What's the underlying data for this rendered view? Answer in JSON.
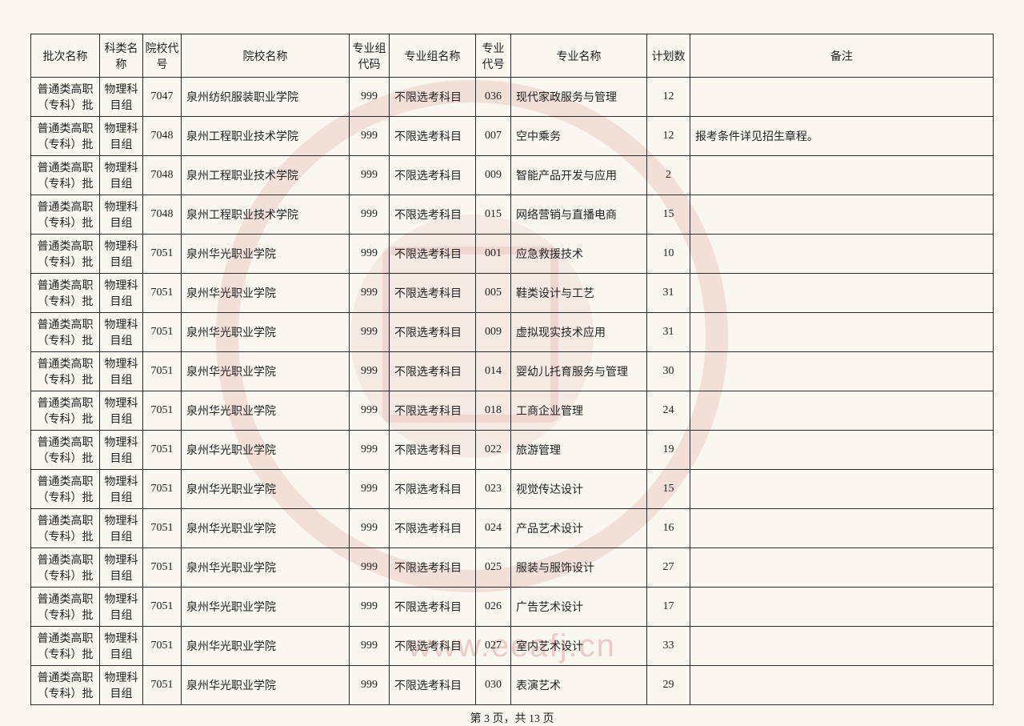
{
  "columns": [
    "批次名称",
    "科类名称",
    "院校代号",
    "院校名称",
    "专业组代码",
    "专业组名称",
    "专业代号",
    "专业名称",
    "计划数",
    "备注"
  ],
  "rows": [
    {
      "batch": "普通类高职（专科）批",
      "subject": "物理科目组",
      "schoolCode": "7047",
      "schoolName": "泉州纺织服装职业学院",
      "groupCode": "999",
      "groupName": "不限选考科目",
      "majorCode": "036",
      "majorName": "现代家政服务与管理",
      "plan": "12",
      "remark": ""
    },
    {
      "batch": "普通类高职（专科）批",
      "subject": "物理科目组",
      "schoolCode": "7048",
      "schoolName": "泉州工程职业技术学院",
      "groupCode": "999",
      "groupName": "不限选考科目",
      "majorCode": "007",
      "majorName": "空中乘务",
      "plan": "12",
      "remark": "报考条件详见招生章程。"
    },
    {
      "batch": "普通类高职（专科）批",
      "subject": "物理科目组",
      "schoolCode": "7048",
      "schoolName": "泉州工程职业技术学院",
      "groupCode": "999",
      "groupName": "不限选考科目",
      "majorCode": "009",
      "majorName": "智能产品开发与应用",
      "plan": "2",
      "remark": ""
    },
    {
      "batch": "普通类高职（专科）批",
      "subject": "物理科目组",
      "schoolCode": "7048",
      "schoolName": "泉州工程职业技术学院",
      "groupCode": "999",
      "groupName": "不限选考科目",
      "majorCode": "015",
      "majorName": "网络营销与直播电商",
      "plan": "15",
      "remark": ""
    },
    {
      "batch": "普通类高职（专科）批",
      "subject": "物理科目组",
      "schoolCode": "7051",
      "schoolName": "泉州华光职业学院",
      "groupCode": "999",
      "groupName": "不限选考科目",
      "majorCode": "001",
      "majorName": "应急救援技术",
      "plan": "10",
      "remark": ""
    },
    {
      "batch": "普通类高职（专科）批",
      "subject": "物理科目组",
      "schoolCode": "7051",
      "schoolName": "泉州华光职业学院",
      "groupCode": "999",
      "groupName": "不限选考科目",
      "majorCode": "005",
      "majorName": "鞋类设计与工艺",
      "plan": "31",
      "remark": ""
    },
    {
      "batch": "普通类高职（专科）批",
      "subject": "物理科目组",
      "schoolCode": "7051",
      "schoolName": "泉州华光职业学院",
      "groupCode": "999",
      "groupName": "不限选考科目",
      "majorCode": "009",
      "majorName": "虚拟现实技术应用",
      "plan": "31",
      "remark": ""
    },
    {
      "batch": "普通类高职（专科）批",
      "subject": "物理科目组",
      "schoolCode": "7051",
      "schoolName": "泉州华光职业学院",
      "groupCode": "999",
      "groupName": "不限选考科目",
      "majorCode": "014",
      "majorName": "婴幼儿托育服务与管理",
      "plan": "30",
      "remark": ""
    },
    {
      "batch": "普通类高职（专科）批",
      "subject": "物理科目组",
      "schoolCode": "7051",
      "schoolName": "泉州华光职业学院",
      "groupCode": "999",
      "groupName": "不限选考科目",
      "majorCode": "018",
      "majorName": "工商企业管理",
      "plan": "24",
      "remark": ""
    },
    {
      "batch": "普通类高职（专科）批",
      "subject": "物理科目组",
      "schoolCode": "7051",
      "schoolName": "泉州华光职业学院",
      "groupCode": "999",
      "groupName": "不限选考科目",
      "majorCode": "022",
      "majorName": "旅游管理",
      "plan": "19",
      "remark": ""
    },
    {
      "batch": "普通类高职（专科）批",
      "subject": "物理科目组",
      "schoolCode": "7051",
      "schoolName": "泉州华光职业学院",
      "groupCode": "999",
      "groupName": "不限选考科目",
      "majorCode": "023",
      "majorName": "视觉传达设计",
      "plan": "15",
      "remark": ""
    },
    {
      "batch": "普通类高职（专科）批",
      "subject": "物理科目组",
      "schoolCode": "7051",
      "schoolName": "泉州华光职业学院",
      "groupCode": "999",
      "groupName": "不限选考科目",
      "majorCode": "024",
      "majorName": "产品艺术设计",
      "plan": "16",
      "remark": ""
    },
    {
      "batch": "普通类高职（专科）批",
      "subject": "物理科目组",
      "schoolCode": "7051",
      "schoolName": "泉州华光职业学院",
      "groupCode": "999",
      "groupName": "不限选考科目",
      "majorCode": "025",
      "majorName": "服装与服饰设计",
      "plan": "27",
      "remark": ""
    },
    {
      "batch": "普通类高职（专科）批",
      "subject": "物理科目组",
      "schoolCode": "7051",
      "schoolName": "泉州华光职业学院",
      "groupCode": "999",
      "groupName": "不限选考科目",
      "majorCode": "026",
      "majorName": "广告艺术设计",
      "plan": "17",
      "remark": ""
    },
    {
      "batch": "普通类高职（专科）批",
      "subject": "物理科目组",
      "schoolCode": "7051",
      "schoolName": "泉州华光职业学院",
      "groupCode": "999",
      "groupName": "不限选考科目",
      "majorCode": "027",
      "majorName": "室内艺术设计",
      "plan": "33",
      "remark": ""
    },
    {
      "batch": "普通类高职（专科）批",
      "subject": "物理科目组",
      "schoolCode": "7051",
      "schoolName": "泉州华光职业学院",
      "groupCode": "999",
      "groupName": "不限选考科目",
      "majorCode": "030",
      "majorName": "表演艺术",
      "plan": "29",
      "remark": ""
    }
  ],
  "pageInfo": "第 3 页，共 13 页",
  "watermark_url": "www.eeafj.cn",
  "colors": {
    "background": "#f9f7f0",
    "text": "#222222",
    "border": "#2a2a2a",
    "seal": "rgba(200,50,50,0.12)",
    "watermark_text": "rgba(195,70,70,0.25)"
  }
}
